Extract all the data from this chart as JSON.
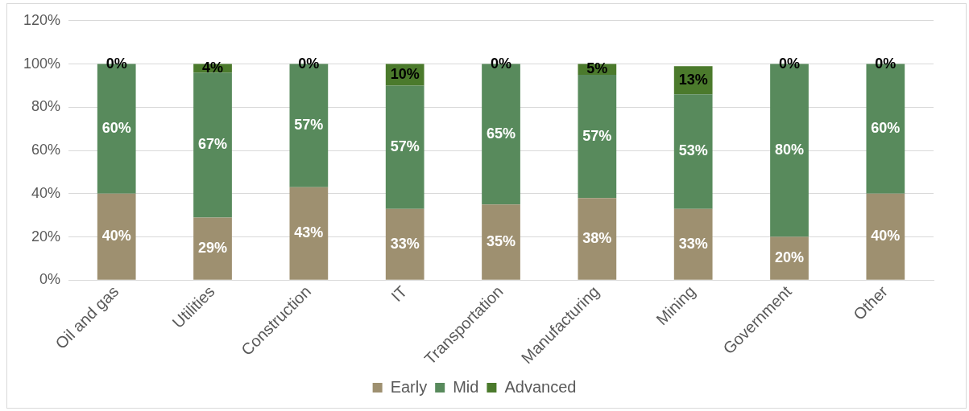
{
  "chart_data": {
    "type": "bar",
    "stacked": true,
    "categories": [
      "Oil and gas",
      "Utilities",
      "Construction",
      "IT",
      "Transportation",
      "Manufacturing",
      "Mining",
      "Government",
      "Other"
    ],
    "series": [
      {
        "name": "Early",
        "color": "#9e9070",
        "values": [
          40,
          29,
          43,
          33,
          35,
          38,
          33,
          20,
          40
        ],
        "value_labels": [
          "40%",
          "29%",
          "43%",
          "33%",
          "35%",
          "38%",
          "33%",
          "20%",
          "40%"
        ]
      },
      {
        "name": "Mid",
        "color": "#588a5c",
        "values": [
          60,
          67,
          57,
          57,
          65,
          57,
          53,
          80,
          60
        ],
        "value_labels": [
          "60%",
          "67%",
          "57%",
          "57%",
          "65%",
          "57%",
          "53%",
          "80%",
          "60%"
        ]
      },
      {
        "name": "Advanced",
        "color": "#4b7a2c",
        "values": [
          0,
          4,
          0,
          10,
          0,
          5,
          13,
          0,
          0
        ],
        "value_labels": [
          "0%",
          "4%",
          "0%",
          "10%",
          "0%",
          "5%",
          "13%",
          "0%",
          "0%"
        ]
      }
    ],
    "ylim": [
      0,
      120
    ],
    "yticks": [
      {
        "value": 0,
        "label": "0%"
      },
      {
        "value": 20,
        "label": "20%"
      },
      {
        "value": 40,
        "label": "40%"
      },
      {
        "value": 60,
        "label": "60%"
      },
      {
        "value": 80,
        "label": "80%"
      },
      {
        "value": 100,
        "label": "100%"
      },
      {
        "value": 120,
        "label": "120%"
      }
    ],
    "grid": "y",
    "legend": "bottom"
  }
}
